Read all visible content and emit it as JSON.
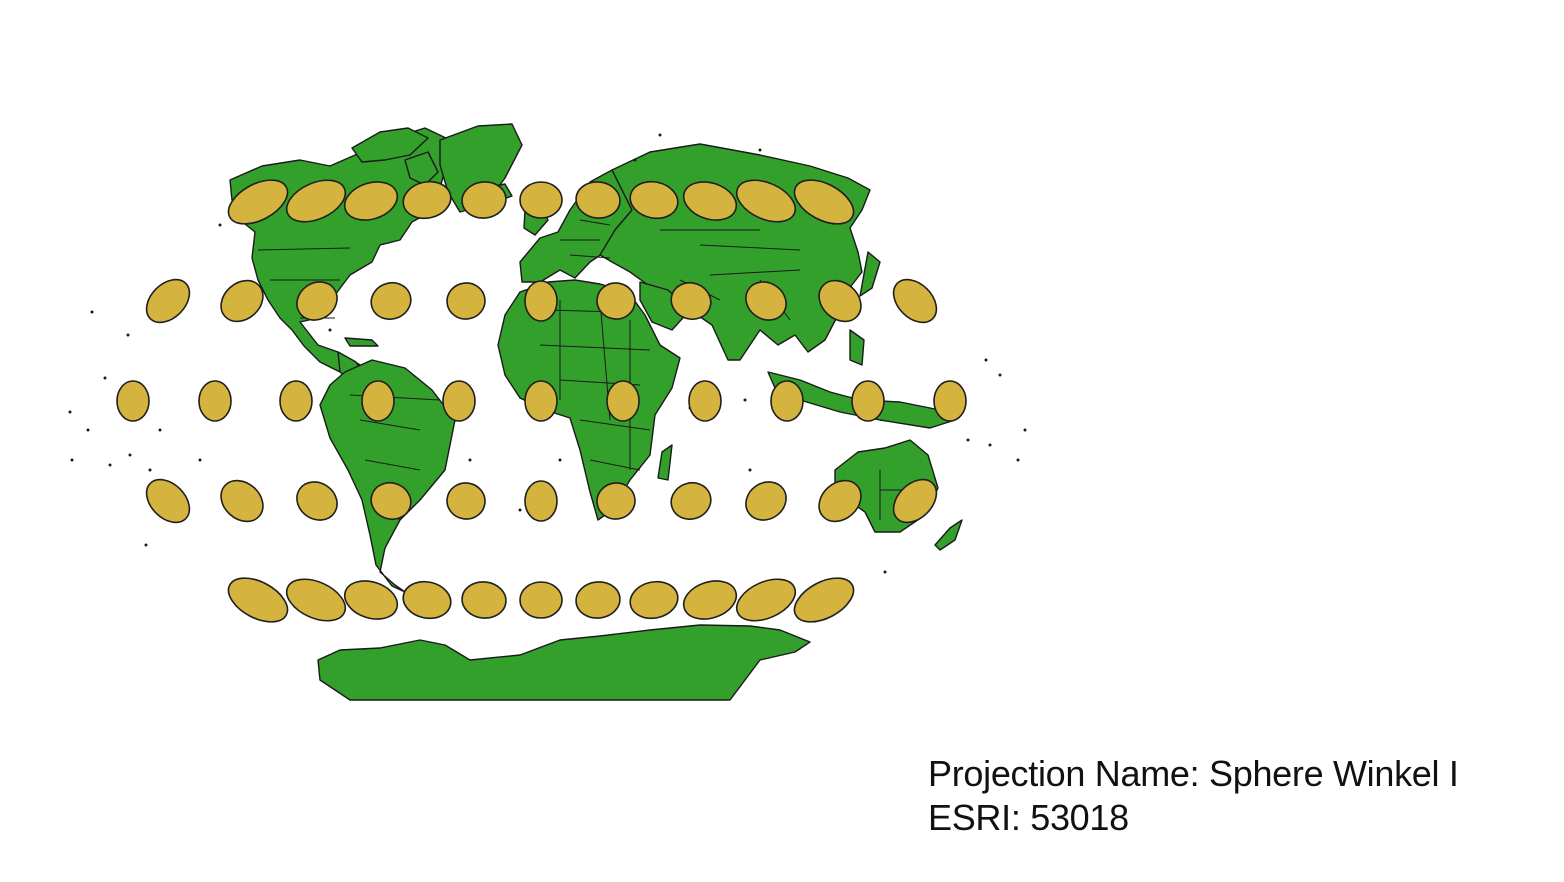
{
  "projection": {
    "name_line": "Projection Name: Sphere Winkel I",
    "code_line": "ESRI: 53018"
  },
  "colors": {
    "land": "#33a02c",
    "outline": "#1a1a1a",
    "indicatrix_fill": "#d4b43e",
    "background": "#ffffff"
  }
}
